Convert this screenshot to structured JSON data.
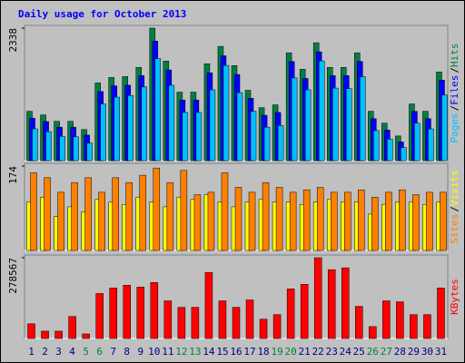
{
  "title": "Daily usage for October 2013",
  "chart_data": [
    {
      "type": "bar",
      "label_separator": "/",
      "ylim": [
        0,
        2338
      ],
      "yticks": [
        2338
      ],
      "series": [
        {
          "name": "Hits",
          "color": "#008040",
          "values": [
            871,
            806,
            693,
            693,
            548,
            1371,
            1467,
            1483,
            1645,
            2338,
            1757,
            1209,
            1209,
            1709,
            2016,
            1677,
            1241,
            935,
            984,
            1903,
            1612,
            2080,
            1645,
            1645,
            1903,
            871,
            661,
            435,
            1000,
            871,
            1564
          ]
        },
        {
          "name": "Files",
          "color": "#0000ff",
          "values": [
            750,
            690,
            590,
            590,
            450,
            1220,
            1320,
            1330,
            1500,
            2110,
            1600,
            1070,
            1070,
            1550,
            1850,
            1520,
            1100,
            800,
            850,
            1750,
            1450,
            1920,
            1500,
            1500,
            1750,
            740,
            540,
            330,
            870,
            740,
            1420
          ]
        },
        {
          "name": "Pages",
          "color": "#00c0ff",
          "values": [
            560,
            510,
            430,
            420,
            310,
            1000,
            1120,
            1150,
            1300,
            1800,
            1330,
            850,
            850,
            1250,
            1680,
            1200,
            870,
            590,
            620,
            1460,
            1250,
            1760,
            1280,
            1270,
            1480,
            530,
            380,
            230,
            660,
            560,
            1160
          ]
        }
      ]
    },
    {
      "type": "bar",
      "label_separator": "/",
      "ylim": [
        0,
        174
      ],
      "yticks": [
        174
      ],
      "series": [
        {
          "name": "Visits",
          "color": "#ffff00",
          "values": [
            100,
            110,
            70,
            90,
            80,
            105,
            100,
            95,
            110,
            100,
            90,
            110,
            105,
            115,
            100,
            90,
            100,
            105,
            100,
            100,
            95,
            100,
            105,
            100,
            100,
            75,
            95,
            100,
            100,
            95,
            100
          ]
        },
        {
          "name": "Sites",
          "color": "#ff8000",
          "values": [
            160,
            150,
            120,
            140,
            150,
            120,
            150,
            140,
            155,
            170,
            140,
            165,
            115,
            120,
            160,
            130,
            120,
            140,
            130,
            120,
            125,
            130,
            120,
            120,
            125,
            110,
            120,
            125,
            115,
            120,
            120
          ]
        }
      ]
    },
    {
      "type": "bar",
      "ylim": [
        0,
        278567
      ],
      "yticks": [
        278567
      ],
      "categories": [
        "1",
        "2",
        "3",
        "4",
        "5",
        "6",
        "7",
        "8",
        "9",
        "10",
        "11",
        "12",
        "13",
        "14",
        "15",
        "16",
        "17",
        "18",
        "19",
        "20",
        "21",
        "22",
        "23",
        "24",
        "25",
        "26",
        "27",
        "28",
        "29",
        "30",
        "31"
      ],
      "category_colors": [
        "#000080",
        "#000080",
        "#000080",
        "#000080",
        "#008040",
        "#008040",
        "#000080",
        "#000080",
        "#000080",
        "#000080",
        "#000080",
        "#008040",
        "#008040",
        "#000080",
        "#000080",
        "#000080",
        "#000080",
        "#000080",
        "#008040",
        "#008040",
        "#000080",
        "#000080",
        "#000080",
        "#000080",
        "#000080",
        "#008040",
        "#008040",
        "#000080",
        "#000080",
        "#000080",
        "#000080"
      ],
      "series": [
        {
          "name": "KBytes",
          "color": "#ff0000",
          "values": [
            50650,
            25324,
            25324,
            75973,
            15828,
            155113,
            174107,
            183600,
            177270,
            193100,
            129800,
            107600,
            107600,
            227900,
            129800,
            107600,
            132950,
            66480,
            82300,
            170900,
            186800,
            278567,
            237400,
            243750,
            110800,
            41150,
            129800,
            126600,
            82300,
            82300,
            174100
          ]
        }
      ]
    }
  ]
}
